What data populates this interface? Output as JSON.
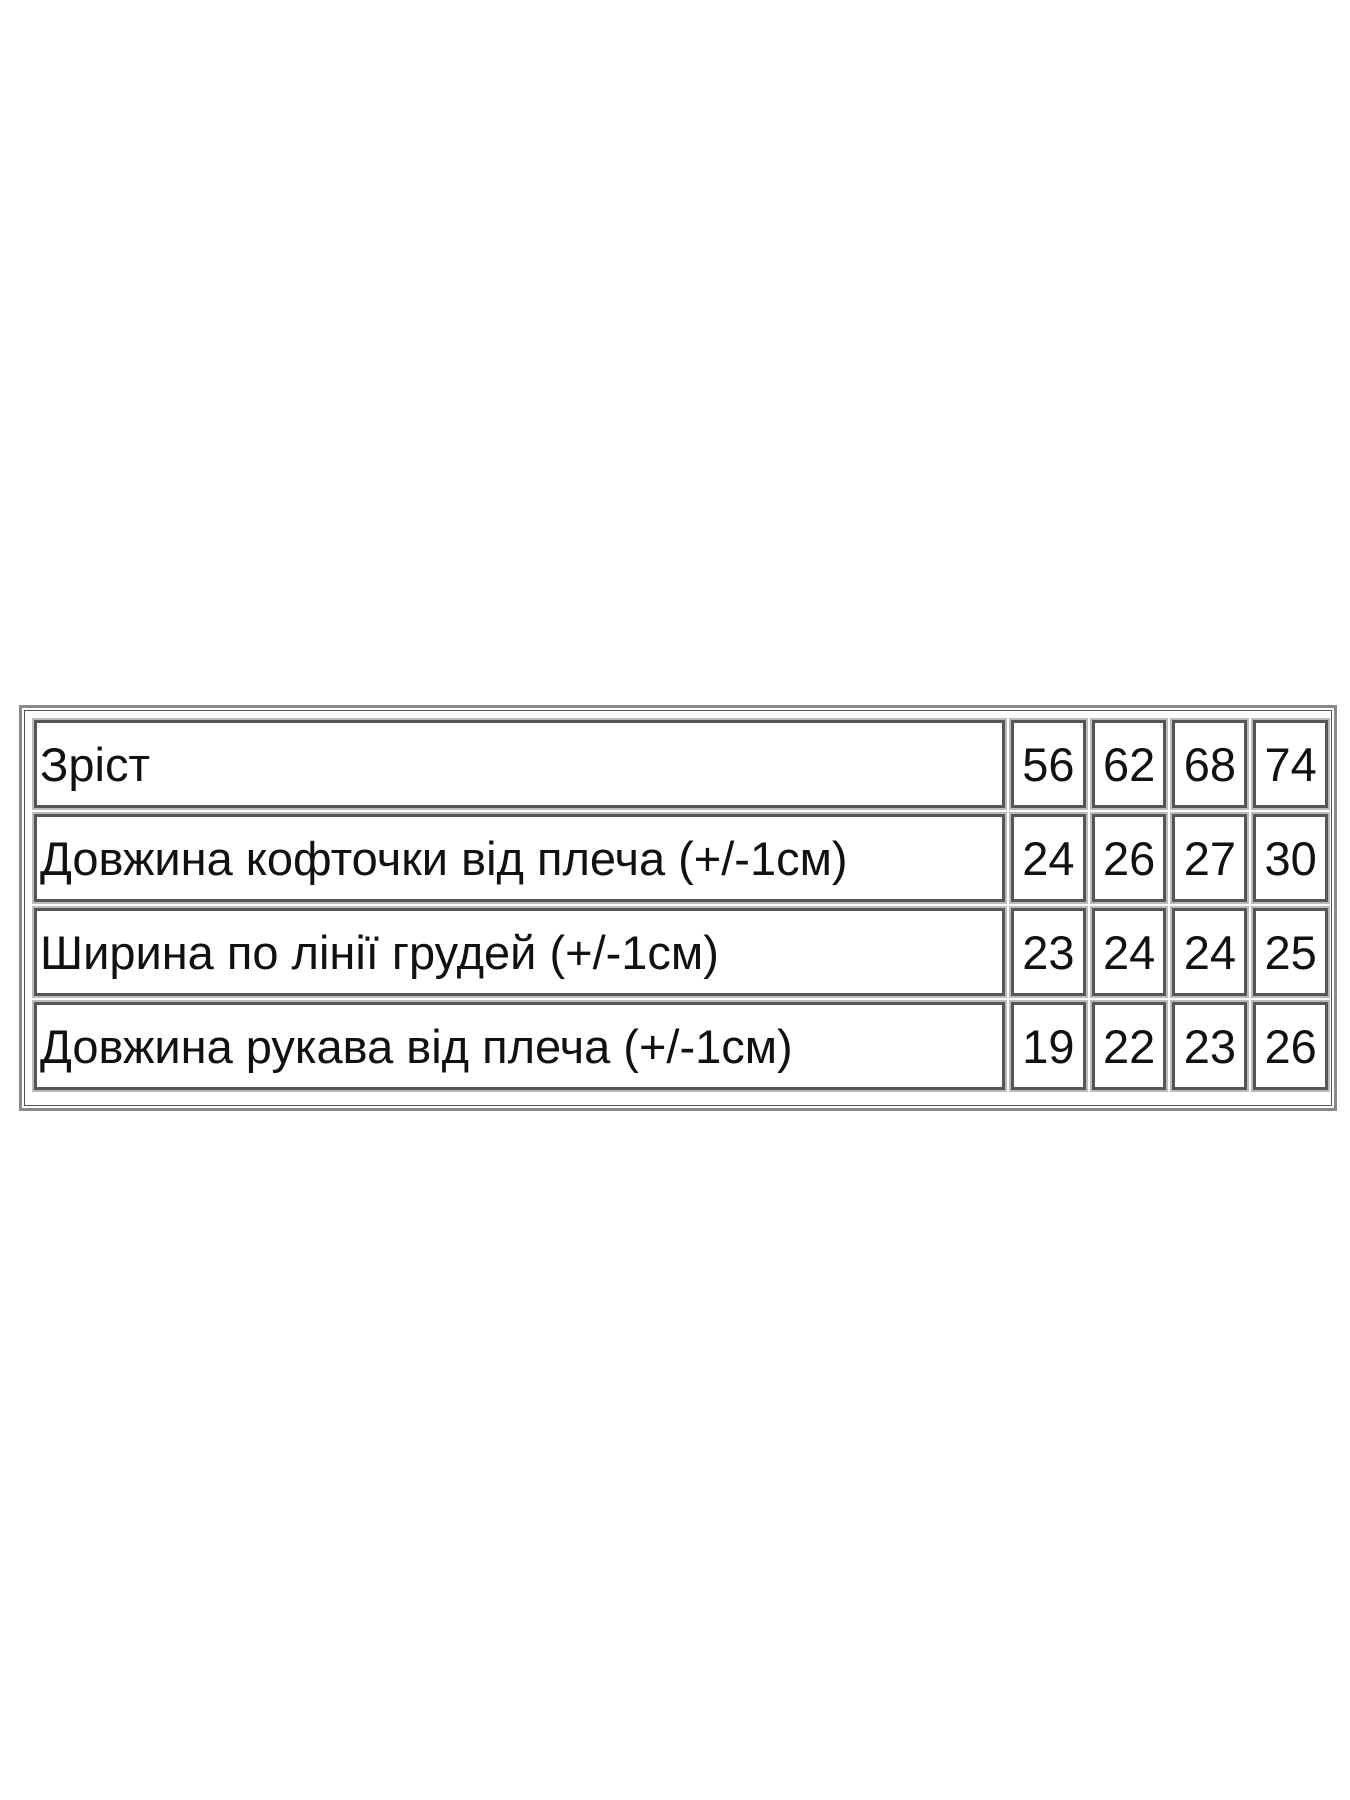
{
  "size_table": {
    "rows": [
      {
        "label": "Зріст",
        "values": [
          "56",
          "62",
          "68",
          "74"
        ]
      },
      {
        "label": "Довжина кофточки від плеча (+/-1см)",
        "values": [
          "24",
          "26",
          "27",
          "30"
        ]
      },
      {
        "label": "Ширина по лінії грудей (+/-1см)",
        "values": [
          "23",
          "24",
          "24",
          "25"
        ]
      },
      {
        "label": "Довжина рукава від плеча (+/-1см)",
        "values": [
          "19",
          "22",
          "23",
          "26"
        ]
      }
    ]
  }
}
